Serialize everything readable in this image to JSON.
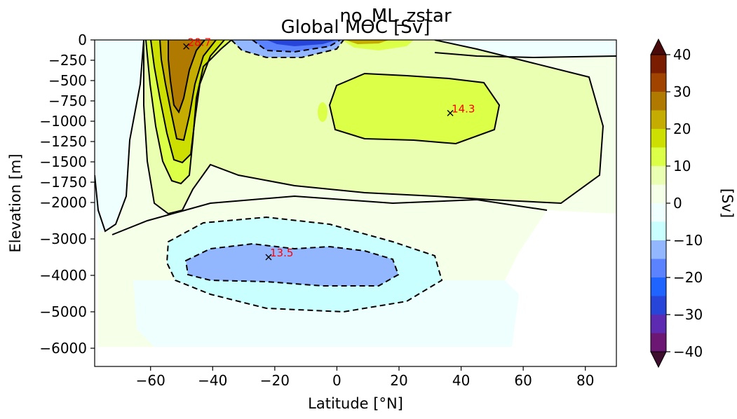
{
  "chart_data": {
    "type": "heatmap",
    "suptitle": "no_ML_zstar",
    "title": "Global MOC [Sv]",
    "xlabel": "Latitude [°N]",
    "ylabel": "Elevation [m]",
    "xlim": [
      -78,
      90
    ],
    "xticks": [
      -60,
      -40,
      -20,
      0,
      20,
      40,
      60,
      80
    ],
    "xtick_labels": [
      "−60",
      "−40",
      "−20",
      "0",
      "20",
      "40",
      "60",
      "80"
    ],
    "ylim": [
      -6500,
      0
    ],
    "y_scale": "piecewise: linear 0 to −2000 (upper), linear −2000 to −6500 (lower, compressed)",
    "yticks": [
      0,
      -250,
      -500,
      -750,
      -1000,
      -1250,
      -1500,
      -1750,
      -2000,
      -3000,
      -4000,
      -5000,
      -6000
    ],
    "ytick_labels": [
      "0",
      "−250",
      "−500",
      "−750",
      "−1000",
      "−1250",
      "−1500",
      "−1750",
      "−2000",
      "−3000",
      "−4000",
      "−5000",
      "−6000"
    ],
    "colorbar": {
      "label": "[Sv]",
      "min": -40,
      "max": 40,
      "ticks": [
        40,
        30,
        20,
        10,
        0,
        -10,
        -20,
        -30,
        -40
      ],
      "tick_labels": [
        "40",
        "30",
        "20",
        "10",
        "0",
        "−10",
        "−20",
        "−30",
        "−40"
      ],
      "extend": "both",
      "levels_from_top": [
        "#4a0a0a",
        "#7a1c00",
        "#a04400",
        "#b07a00",
        "#c4ac00",
        "#ccdf00",
        "#dcff47",
        "#ebffb3",
        "#f6ffe8",
        "#effffe",
        "#c9ffff",
        "#93b7ff",
        "#5b83ff",
        "#1f64ff",
        "#2745d9",
        "#5d2ab2",
        "#6c1774",
        "#3d0e2e"
      ]
    },
    "annotations": [
      {
        "lat": -48.5,
        "depth": -80,
        "text": "28.7",
        "marker": "x"
      },
      {
        "lat": 36.5,
        "depth": -900,
        "text": "14.3",
        "marker": "x"
      },
      {
        "lat": -22,
        "depth": -3500,
        "text": "13.5",
        "marker": "x"
      }
    ],
    "features": [
      {
        "name": "southern-ocean-cell",
        "sign": "positive",
        "lat_range": [
          -62,
          -38
        ],
        "depth_range": [
          -1700,
          0
        ],
        "peak_sv": 28.7
      },
      {
        "name": "atlantic-overturning-cell",
        "sign": "positive",
        "lat_range": [
          -10,
          55
        ],
        "depth_range": [
          -1500,
          -150
        ],
        "peak_sv": 14.3
      },
      {
        "name": "abyssal-cell",
        "sign": "negative",
        "lat_range": [
          -58,
          32
        ],
        "depth_range": [
          -5200,
          -2300
        ],
        "peak_sv": -13.5
      },
      {
        "name": "tropical-surface-cells",
        "sign": "mixed",
        "lat_range": [
          -35,
          25
        ],
        "depth_range": [
          -300,
          0
        ]
      }
    ]
  }
}
